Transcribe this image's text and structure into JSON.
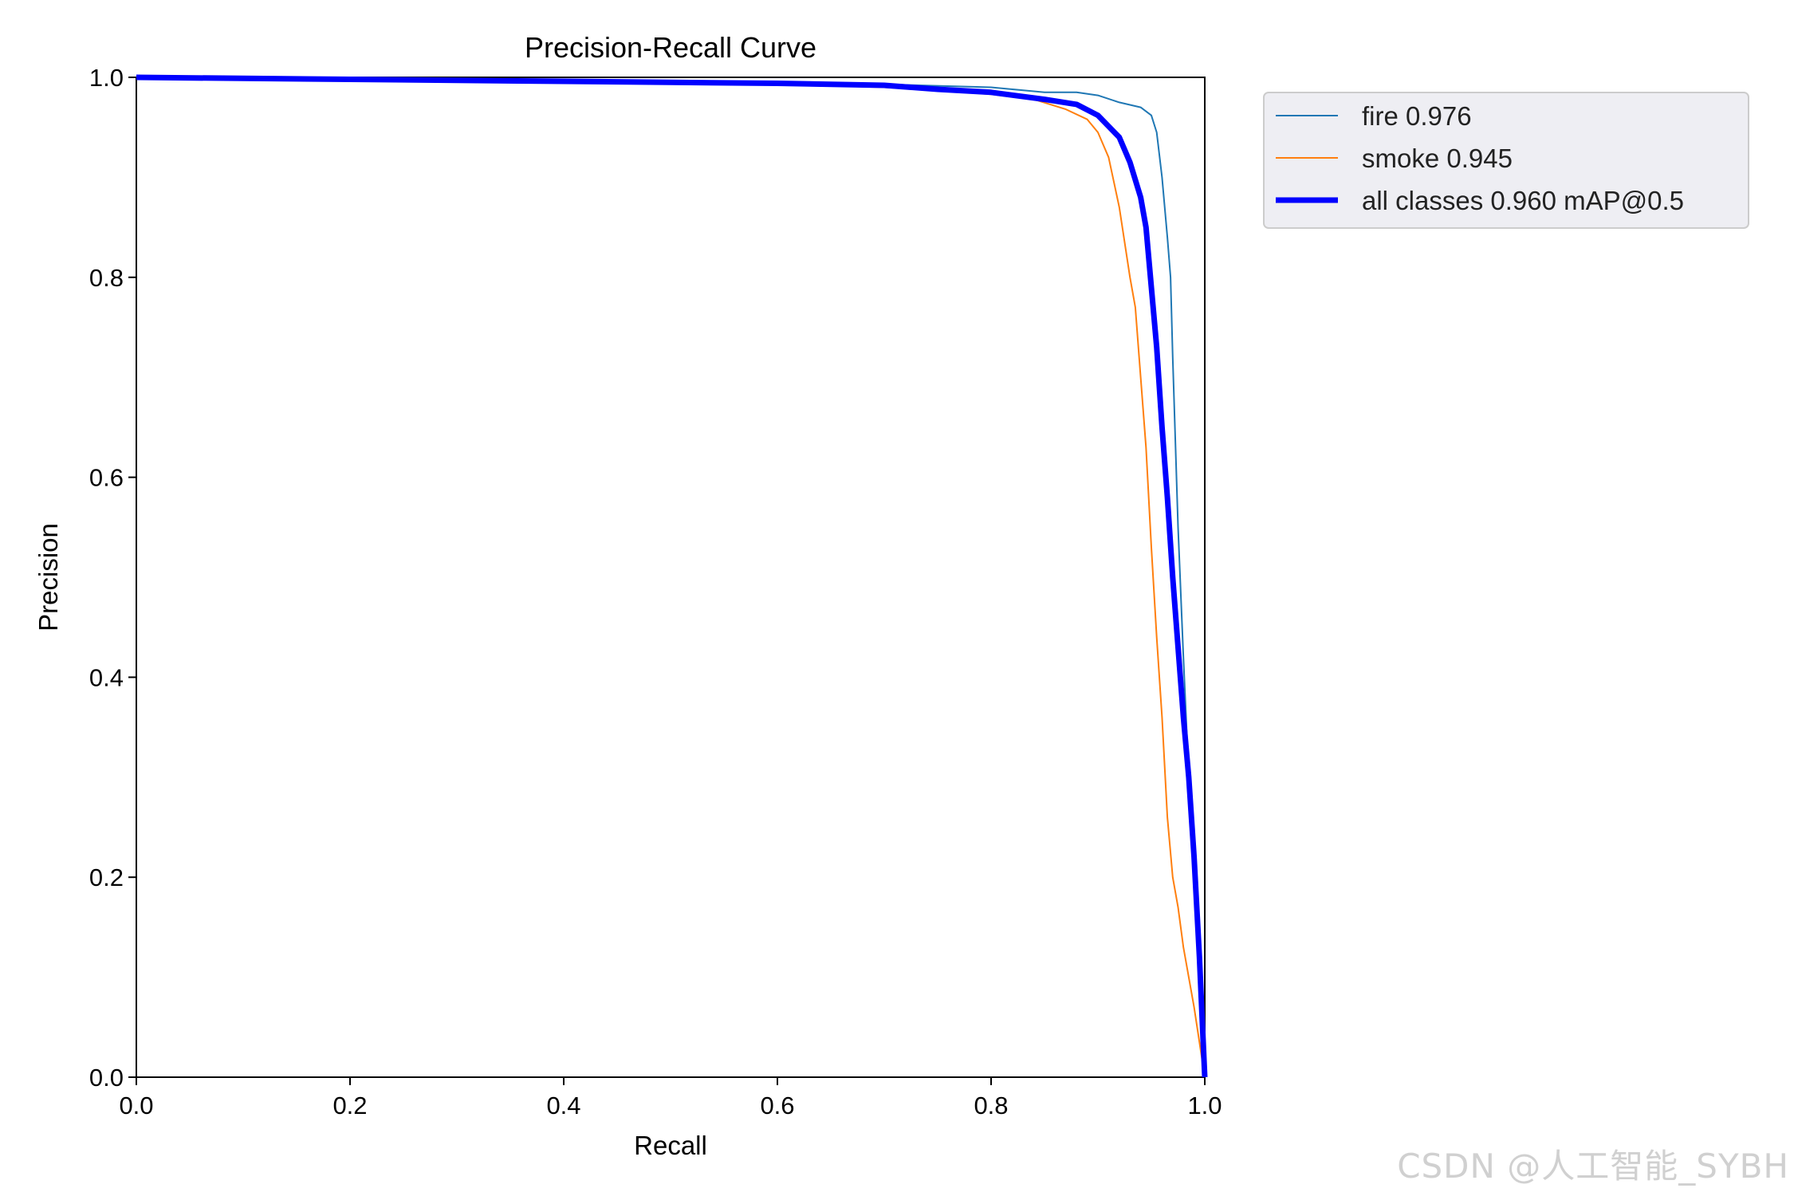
{
  "chart_data": {
    "type": "line",
    "title": "Precision-Recall Curve",
    "xlabel": "Recall",
    "ylabel": "Precision",
    "xlim": [
      0,
      1
    ],
    "ylim": [
      0,
      1
    ],
    "x_ticks": [
      "0.0",
      "0.2",
      "0.4",
      "0.6",
      "0.8",
      "1.0"
    ],
    "y_ticks": [
      "0.0",
      "0.2",
      "0.4",
      "0.6",
      "0.8",
      "1.0"
    ],
    "grid": false,
    "legend_position": "outside-top-right",
    "series": [
      {
        "name": "fire 0.976",
        "color": "#1f77b4",
        "x": [
          0.0,
          0.1,
          0.2,
          0.3,
          0.4,
          0.5,
          0.6,
          0.7,
          0.8,
          0.85,
          0.88,
          0.9,
          0.92,
          0.94,
          0.95,
          0.955,
          0.96,
          0.965,
          0.968,
          0.97,
          0.975,
          0.98,
          0.985,
          0.99,
          0.995,
          1.0
        ],
        "y": [
          1.0,
          0.999,
          0.999,
          0.998,
          0.997,
          0.996,
          0.995,
          0.993,
          0.99,
          0.985,
          0.985,
          0.982,
          0.975,
          0.97,
          0.962,
          0.945,
          0.9,
          0.84,
          0.8,
          0.72,
          0.55,
          0.42,
          0.3,
          0.2,
          0.1,
          0.0
        ]
      },
      {
        "name": "smoke 0.945",
        "color": "#ff7f0e",
        "x": [
          0.0,
          0.1,
          0.2,
          0.3,
          0.4,
          0.5,
          0.6,
          0.7,
          0.75,
          0.8,
          0.84,
          0.87,
          0.89,
          0.9,
          0.91,
          0.92,
          0.93,
          0.935,
          0.94,
          0.945,
          0.95,
          0.955,
          0.96,
          0.965,
          0.97,
          0.975,
          0.98,
          0.99,
          1.0
        ],
        "y": [
          1.0,
          0.999,
          0.998,
          0.997,
          0.996,
          0.995,
          0.993,
          0.99,
          0.987,
          0.983,
          0.978,
          0.968,
          0.958,
          0.945,
          0.92,
          0.87,
          0.8,
          0.77,
          0.7,
          0.63,
          0.53,
          0.44,
          0.36,
          0.26,
          0.2,
          0.17,
          0.13,
          0.07,
          0.0
        ]
      },
      {
        "name": "all classes 0.960 mAP@0.5",
        "color": "#0000ff",
        "x": [
          0.0,
          0.1,
          0.2,
          0.3,
          0.4,
          0.5,
          0.6,
          0.7,
          0.75,
          0.8,
          0.85,
          0.88,
          0.9,
          0.92,
          0.93,
          0.94,
          0.945,
          0.95,
          0.955,
          0.96,
          0.965,
          0.97,
          0.975,
          0.98,
          0.985,
          0.99,
          0.995,
          1.0
        ],
        "y": [
          1.0,
          0.999,
          0.998,
          0.997,
          0.996,
          0.995,
          0.994,
          0.992,
          0.988,
          0.985,
          0.978,
          0.973,
          0.962,
          0.94,
          0.915,
          0.88,
          0.85,
          0.79,
          0.73,
          0.65,
          0.58,
          0.5,
          0.43,
          0.36,
          0.3,
          0.22,
          0.12,
          0.0
        ]
      }
    ]
  },
  "watermark": "CSDN @人工智能_SYBH"
}
